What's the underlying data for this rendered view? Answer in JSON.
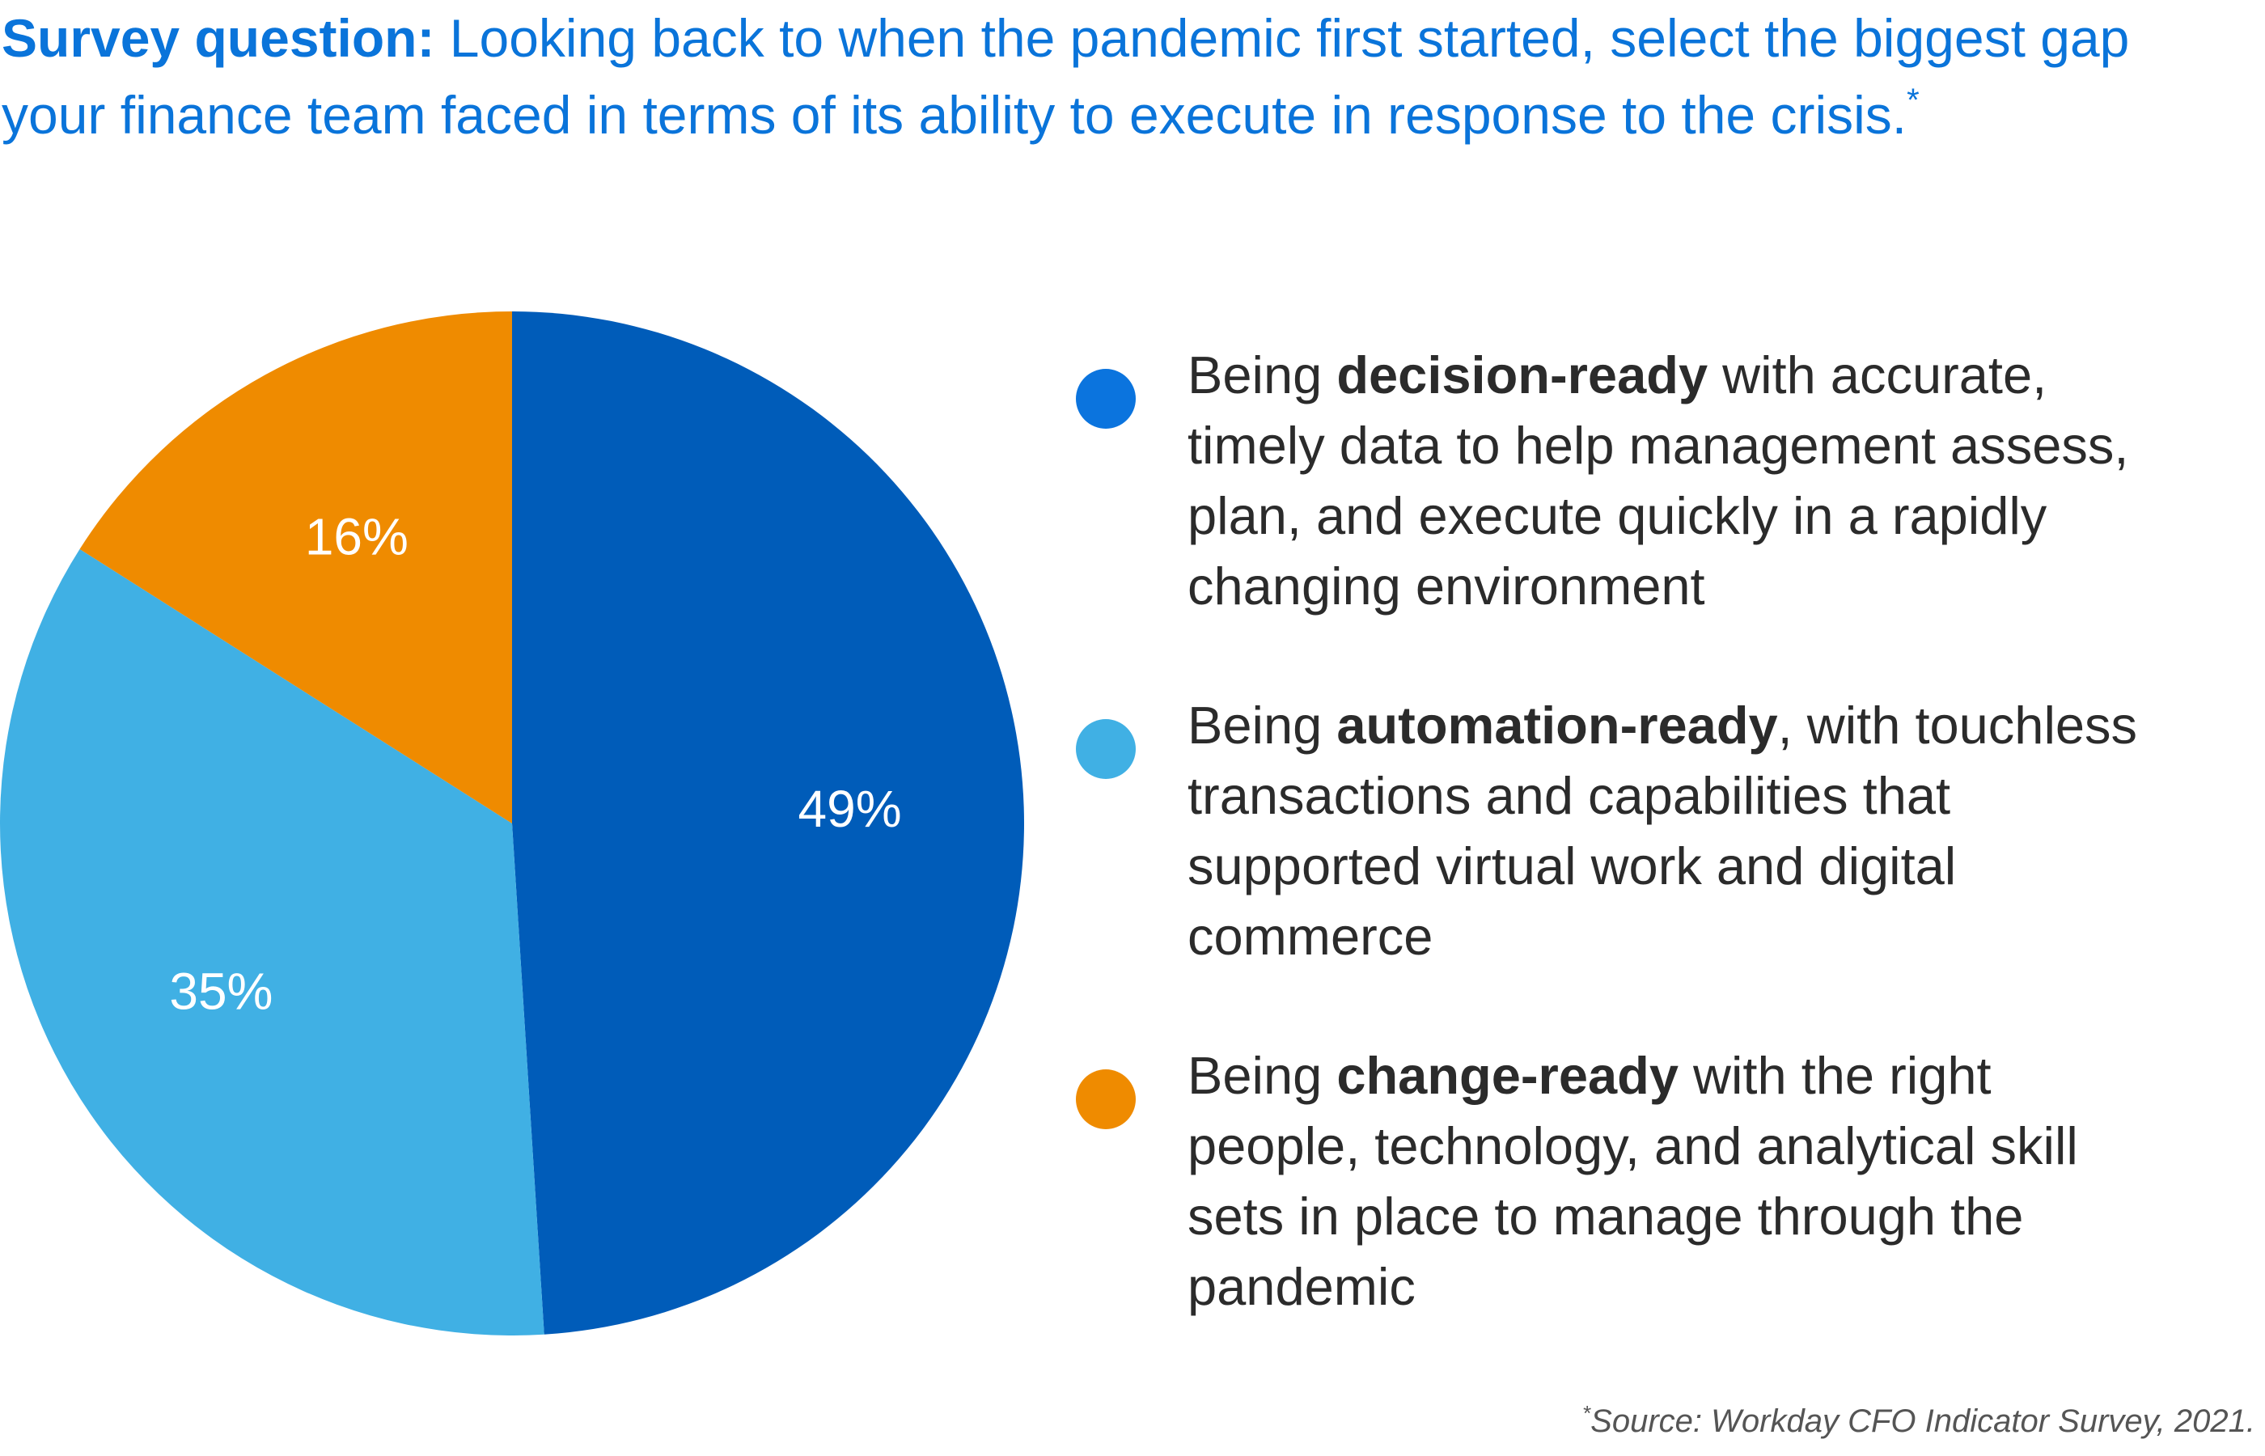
{
  "header": {
    "label": "Survey question:",
    "question": "Looking back to when the pandemic first started, select the biggest gap your finance team faced in terms of its ability to execute in response to the crisis.",
    "marker": "*"
  },
  "colors": {
    "header_blue": "#0a74da",
    "dark_blue": "#005cb9",
    "bright_blue": "#0b74de",
    "light_blue": "#40b0e4",
    "orange": "#ef8b00",
    "text_dark": "#2b2b2b"
  },
  "chart_data": {
    "type": "pie",
    "slices": [
      {
        "label": "49%",
        "value": 49,
        "color": "#005cb9"
      },
      {
        "label": "35%",
        "value": 35,
        "color": "#40b0e4"
      },
      {
        "label": "16%",
        "value": 16,
        "color": "#ef8b00"
      }
    ]
  },
  "legend": [
    {
      "prefix": "Being ",
      "bold": "decision-ready",
      "suffix": " with accurate, timely data to help management assess, plan, and execute quickly in a rapidly changing environment",
      "color": "#0b74de"
    },
    {
      "prefix": "Being ",
      "bold": "automation-ready",
      "suffix": ", with touchless transactions and capabilities that supported virtual work and digital commerce",
      "color": "#40b0e4"
    },
    {
      "prefix": "Being ",
      "bold": "change-ready",
      "suffix": " with the right people, technology, and analytical skill sets in place to manage through the pandemic",
      "color": "#ef8b00"
    }
  ],
  "footnote": {
    "marker": "*",
    "text": "Source: Workday CFO Indicator Survey, 2021."
  }
}
